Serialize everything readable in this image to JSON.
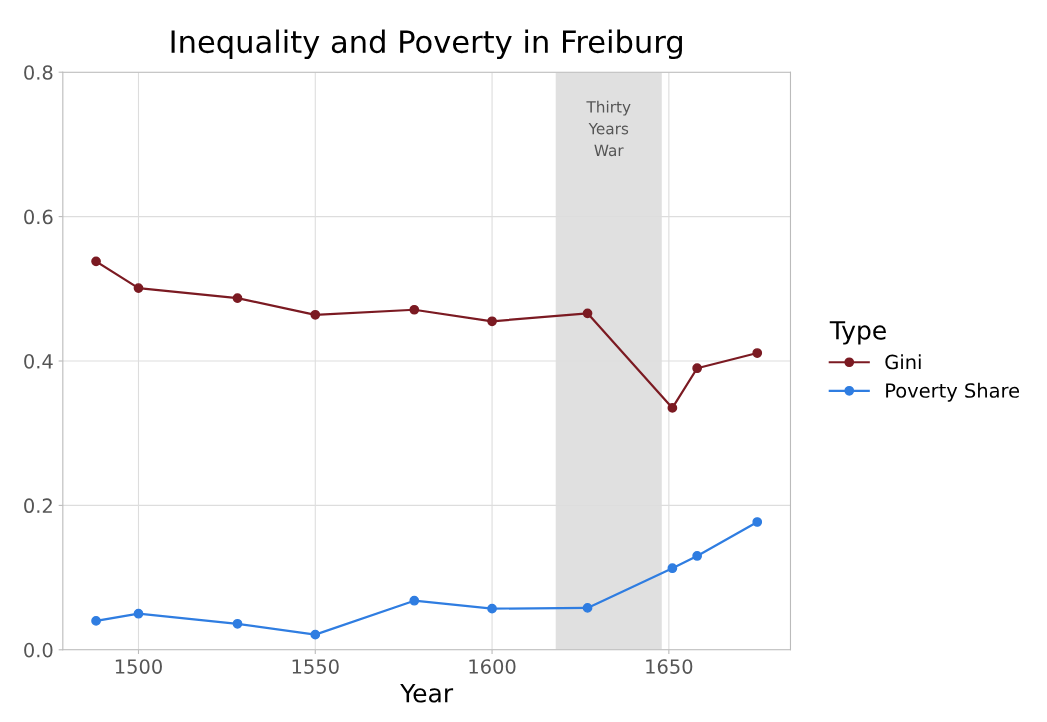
{
  "chart_data": {
    "type": "line",
    "title": "Inequality and Poverty in Freiburg",
    "xlabel": "Year",
    "legend_title": "Type",
    "legend": "right",
    "grid": true,
    "marker": "circle",
    "line_style": "solid",
    "x": [
      1488,
      1500,
      1528,
      1550,
      1578,
      1600,
      1627,
      1651,
      1658,
      1675
    ],
    "series": [
      {
        "name": "Gini",
        "color": "#7b1a22",
        "values": [
          0.538,
          0.501,
          0.487,
          0.464,
          0.471,
          0.455,
          0.466,
          0.335,
          0.39,
          0.411
        ]
      },
      {
        "name": "Poverty Share",
        "color": "#2f7de1",
        "values": [
          0.04,
          0.05,
          0.036,
          0.021,
          0.068,
          0.057,
          0.058,
          0.113,
          0.13,
          0.177
        ]
      }
    ],
    "xlim": [
      1478.6,
      1684.4
    ],
    "ylim": [
      0,
      0.8
    ],
    "xticks": [
      1500,
      1550,
      1600,
      1650
    ],
    "yticks": [
      {
        "value": 0,
        "label": "0.0"
      },
      0.2,
      0.4,
      0.6,
      0.8
    ],
    "bands": [
      {
        "axis": "x",
        "from": 1618,
        "to": 1648,
        "label": "Thirty\nYears\nWar",
        "color": "#e0e0e0"
      }
    ]
  }
}
